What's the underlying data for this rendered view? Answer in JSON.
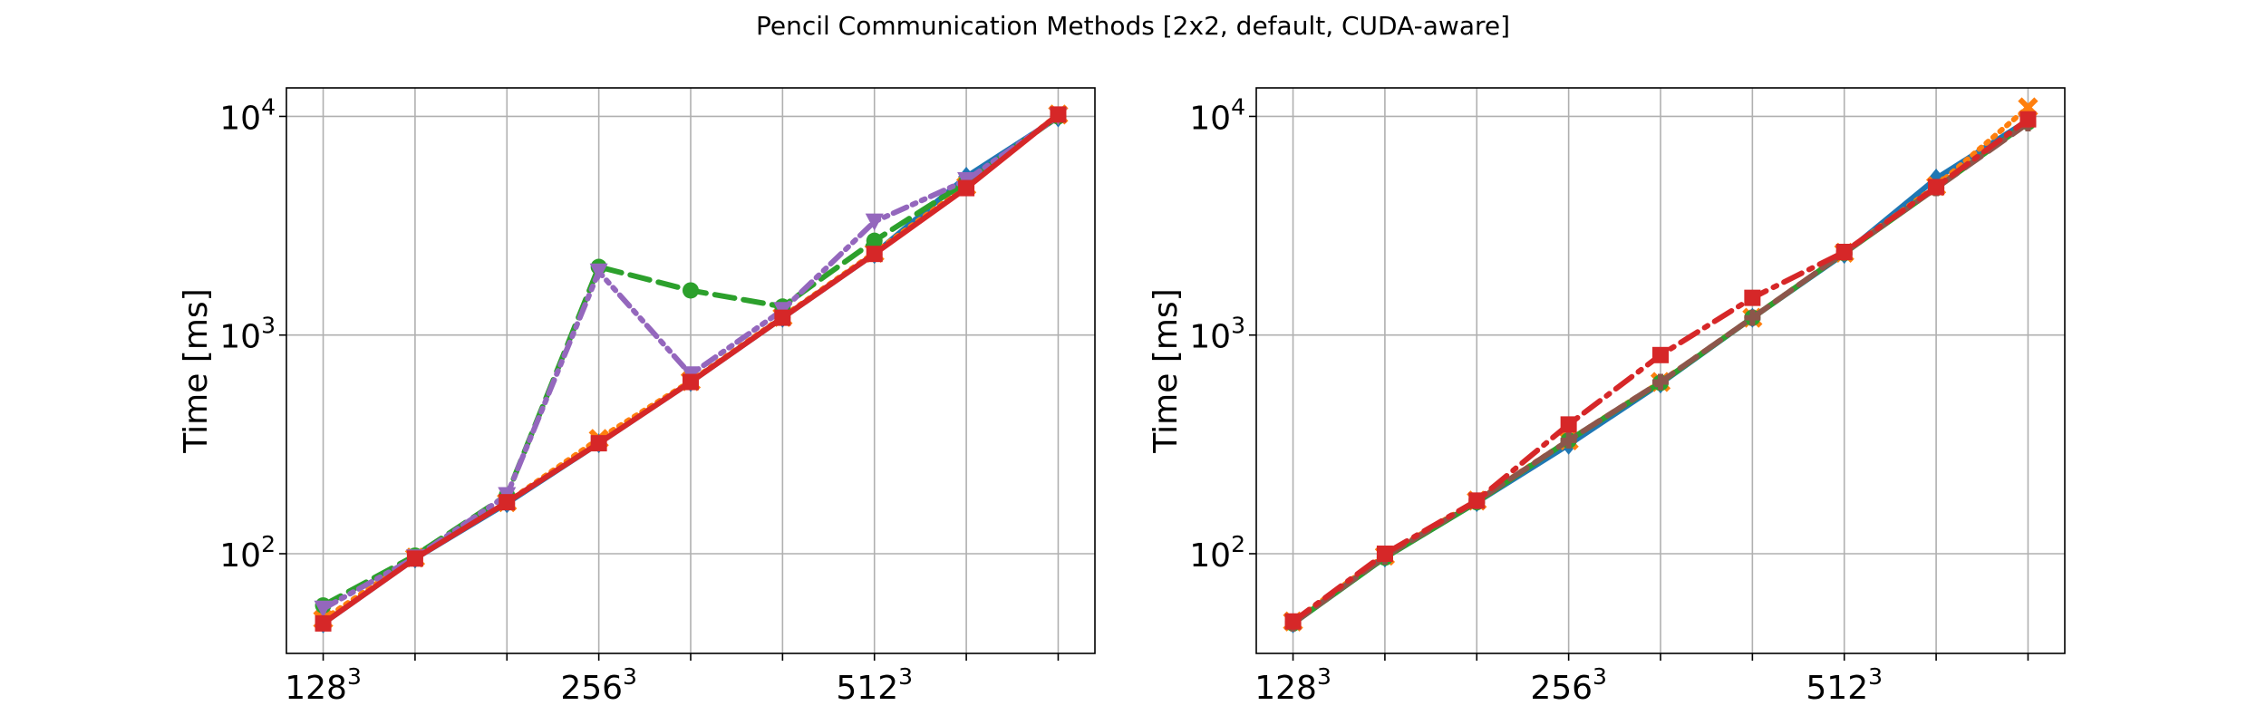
{
  "figure": {
    "title": "Pencil Communication Methods [2x2, default, CUDA-aware]"
  },
  "chart_data": [
    {
      "type": "line",
      "title": "",
      "xlabel": "",
      "ylabel": "Time [ms]",
      "yscale": "log",
      "ylim": [
        35,
        13500
      ],
      "grid": true,
      "x": [
        0,
        1,
        2,
        3,
        4,
        5,
        6,
        7,
        8
      ],
      "x_tick_labels": [
        {
          "x": 0,
          "base": "128",
          "exp": "3"
        },
        {
          "x": 3,
          "base": "256",
          "exp": "3"
        },
        {
          "x": 6,
          "base": "512",
          "exp": "3"
        }
      ],
      "y_tick_labels": [
        {
          "value": 100,
          "base": "10",
          "exp": "2"
        },
        {
          "value": 1000,
          "base": "10",
          "exp": "3"
        },
        {
          "value": 10000,
          "base": "10",
          "exp": "4"
        }
      ],
      "series": [
        {
          "color": "#1f77b4",
          "dash": "solid",
          "marker": "diamond",
          "values": [
            48,
            95,
            170,
            320,
            610,
            1200,
            2350,
            5300,
            9900
          ]
        },
        {
          "color": "#ff7f0e",
          "dash": "dotted",
          "marker": "x",
          "values": [
            50,
            96,
            172,
            335,
            615,
            1210,
            2380,
            4800,
            10200
          ]
        },
        {
          "color": "#2ca02c",
          "dash": "dashed",
          "marker": "circle",
          "values": [
            58,
            98,
            185,
            2050,
            1600,
            1350,
            2700,
            5000,
            10000
          ]
        },
        {
          "color": "#9467bd",
          "dash": "dashdotdot",
          "marker": "triangle-down",
          "values": [
            56,
            96,
            185,
            1950,
            660,
            1300,
            3300,
            5100,
            10000
          ]
        },
        {
          "color": "#d62728",
          "dash": "solid",
          "marker": "square",
          "values": [
            48,
            95,
            172,
            320,
            610,
            1200,
            2350,
            4700,
            10200
          ]
        }
      ]
    },
    {
      "type": "line",
      "title": "",
      "xlabel": "",
      "ylabel": "Time [ms]",
      "yscale": "log",
      "ylim": [
        35,
        13500
      ],
      "grid": true,
      "x": [
        0,
        1,
        2,
        3,
        4,
        5,
        6,
        7,
        8
      ],
      "x_tick_labels": [
        {
          "x": 0,
          "base": "128",
          "exp": "3"
        },
        {
          "x": 3,
          "base": "256",
          "exp": "3"
        },
        {
          "x": 6,
          "base": "512",
          "exp": "3"
        }
      ],
      "y_tick_labels": [
        {
          "value": 100,
          "base": "10",
          "exp": "2"
        },
        {
          "value": 1000,
          "base": "10",
          "exp": "3"
        },
        {
          "value": 10000,
          "base": "10",
          "exp": "4"
        }
      ],
      "series": [
        {
          "color": "#1f77b4",
          "dash": "solid",
          "marker": "diamond",
          "values": [
            48,
            96,
            172,
            315,
            600,
            1200,
            2350,
            5200,
            9600
          ]
        },
        {
          "color": "#ff7f0e",
          "dash": "dotted",
          "marker": "x",
          "values": [
            49,
            98,
            175,
            330,
            610,
            1200,
            2380,
            4800,
            11000
          ]
        },
        {
          "color": "#2ca02c",
          "dash": "solid",
          "marker": "circle",
          "values": [
            48,
            96,
            172,
            330,
            605,
            1200,
            2370,
            4700,
            9400
          ]
        },
        {
          "color": "#8c564b",
          "dash": "dashed",
          "marker": "plus",
          "values": [
            48,
            97,
            174,
            330,
            610,
            1200,
            2380,
            4700,
            9300
          ]
        },
        {
          "color": "#d62728",
          "dash": "dashdot",
          "marker": "square",
          "values": [
            49,
            100,
            175,
            390,
            810,
            1480,
            2400,
            4750,
            9700
          ]
        }
      ]
    }
  ]
}
